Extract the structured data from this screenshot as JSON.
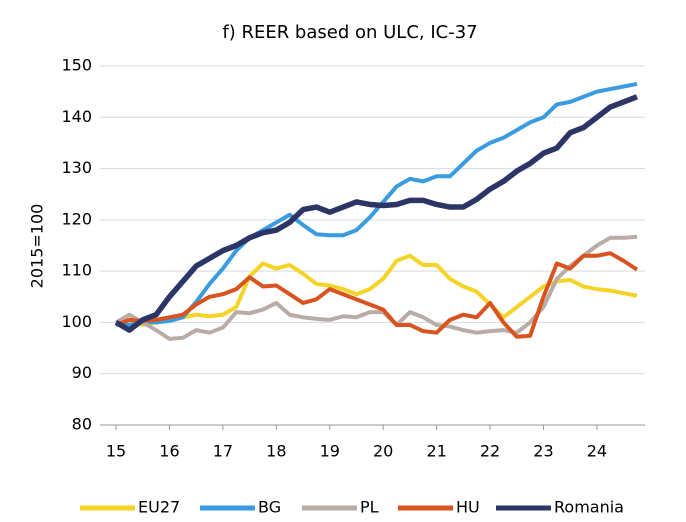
{
  "chart_data": {
    "type": "line",
    "title": "f) REER based on ULC, IC-37",
    "y_label": "2015=100",
    "x": [
      15,
      15.25,
      15.5,
      15.75,
      16,
      16.25,
      16.5,
      16.75,
      17,
      17.25,
      17.5,
      17.75,
      18,
      18.25,
      18.5,
      18.75,
      19,
      19.25,
      19.5,
      19.75,
      20,
      20.25,
      20.5,
      20.75,
      21,
      21.25,
      21.5,
      21.75,
      22,
      22.25,
      22.5,
      22.75,
      23,
      23.25,
      23.5,
      23.75,
      24,
      24.25,
      24.5,
      24.75
    ],
    "xlim": [
      14.7,
      24.9
    ],
    "xticks": [
      15,
      16,
      17,
      18,
      19,
      20,
      21,
      22,
      23,
      24
    ],
    "ylim": [
      80,
      150
    ],
    "yticks": [
      80,
      90,
      100,
      110,
      120,
      130,
      140,
      150
    ],
    "grid": true,
    "legend": "bottom",
    "series": [
      {
        "name": "EU27",
        "color": "#f5d327",
        "values": [
          100,
          100.5,
          99.5,
          100,
          100.5,
          101,
          101.5,
          101.2,
          101.5,
          103,
          109,
          111.5,
          110.5,
          111.2,
          109.5,
          107.5,
          107.2,
          106.5,
          105.5,
          106.5,
          108.5,
          112,
          113,
          111.2,
          111.2,
          108.5,
          107,
          106,
          103.5,
          101,
          103,
          105,
          107,
          108,
          108.3,
          107,
          106.5,
          106.2,
          105.7,
          105.2
        ]
      },
      {
        "name": "BG",
        "color": "#3a9be0",
        "values": [
          100,
          99.5,
          100,
          100,
          100.3,
          101,
          104,
          107.5,
          110.5,
          114,
          116.5,
          118,
          119.5,
          121,
          119,
          117.2,
          117,
          117,
          118,
          120.5,
          123.5,
          126.5,
          128,
          127.5,
          128.5,
          128.5,
          131,
          133.5,
          135,
          136,
          137.5,
          139,
          140,
          142.5,
          143,
          144,
          145,
          145.5,
          146,
          146.5
        ]
      },
      {
        "name": "PL",
        "color": "#b8aca6",
        "values": [
          100,
          101.5,
          100,
          98.5,
          96.8,
          97,
          98.5,
          98,
          99,
          102,
          101.8,
          102.5,
          103.8,
          101.5,
          101,
          100.7,
          100.5,
          101.2,
          101,
          102,
          102,
          99.5,
          102,
          101,
          99.5,
          99.2,
          98.5,
          98,
          98.3,
          98.5,
          98,
          100,
          103,
          108.5,
          111,
          113,
          115,
          116.5,
          116.5,
          116.7
        ]
      },
      {
        "name": "HU",
        "color": "#d9531e",
        "values": [
          99.5,
          100.5,
          100.3,
          100.5,
          101,
          101.5,
          103.5,
          105,
          105.5,
          106.5,
          108.8,
          107,
          107.2,
          105.5,
          103.8,
          104.5,
          106.5,
          105.5,
          104.5,
          103.5,
          102.5,
          99.5,
          99.5,
          98.3,
          98,
          100.5,
          101.5,
          101,
          103.8,
          100,
          97.2,
          97.4,
          105,
          111.5,
          110.5,
          113,
          113,
          113.5,
          112,
          110.3
        ]
      },
      {
        "name": "Romania",
        "color": "#2b3566",
        "values": [
          100,
          98.5,
          100.5,
          101.5,
          105,
          108,
          111,
          112.5,
          114,
          115,
          116.5,
          117.5,
          118,
          119.5,
          122,
          122.5,
          121.5,
          122.5,
          123.5,
          123,
          122.8,
          123,
          123.8,
          123.8,
          123,
          122.5,
          122.5,
          124,
          126,
          127.5,
          129.5,
          131,
          133,
          134,
          137,
          138,
          140,
          142,
          143,
          144
        ]
      }
    ]
  }
}
